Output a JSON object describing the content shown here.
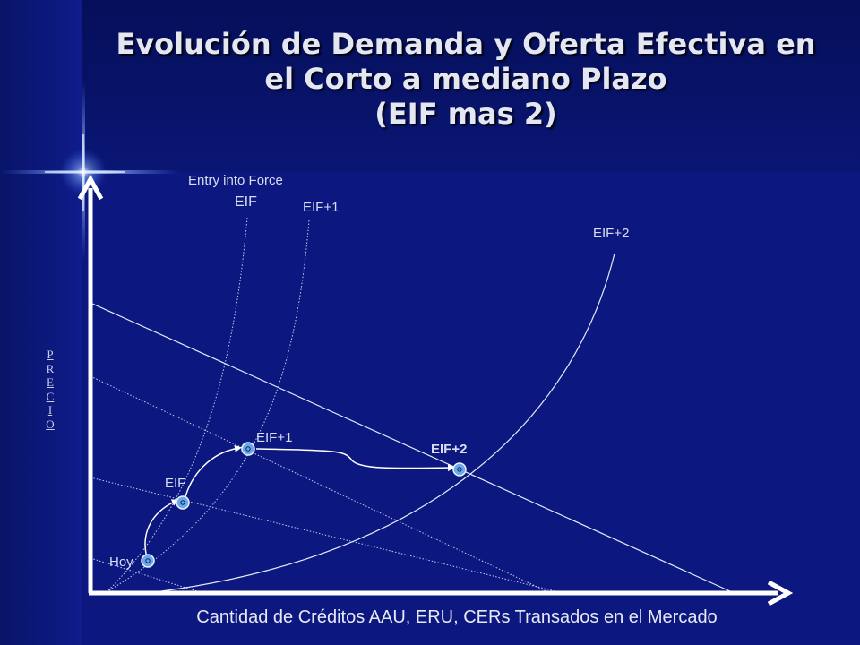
{
  "slide": {
    "title_lines": [
      "Evolución de Demanda y Oferta Efectiva en",
      "el Corto a mediano Plazo",
      "(EIF mas 2)"
    ]
  },
  "axes": {
    "y_label_letters": [
      "P",
      "R",
      "E",
      "C",
      "I",
      "O"
    ],
    "x_label": "Cantidad de Créditos AAU, ERU, CERs Transados en el Mercado"
  },
  "curve_labels": {
    "entry_into_force": "Entry into Force",
    "eif": "EIF",
    "eif_plus_1": "EIF+1",
    "eif_plus_2": "EIF+2"
  },
  "point_labels": {
    "hoy": "Hoy",
    "eif": "EIF",
    "eif_plus_1": "EIF+1",
    "eif_plus_2": "EIF+2"
  },
  "colors": {
    "background": "#0c1880",
    "axis": "#ffffff",
    "point_fill": "#6aa8e6"
  }
}
